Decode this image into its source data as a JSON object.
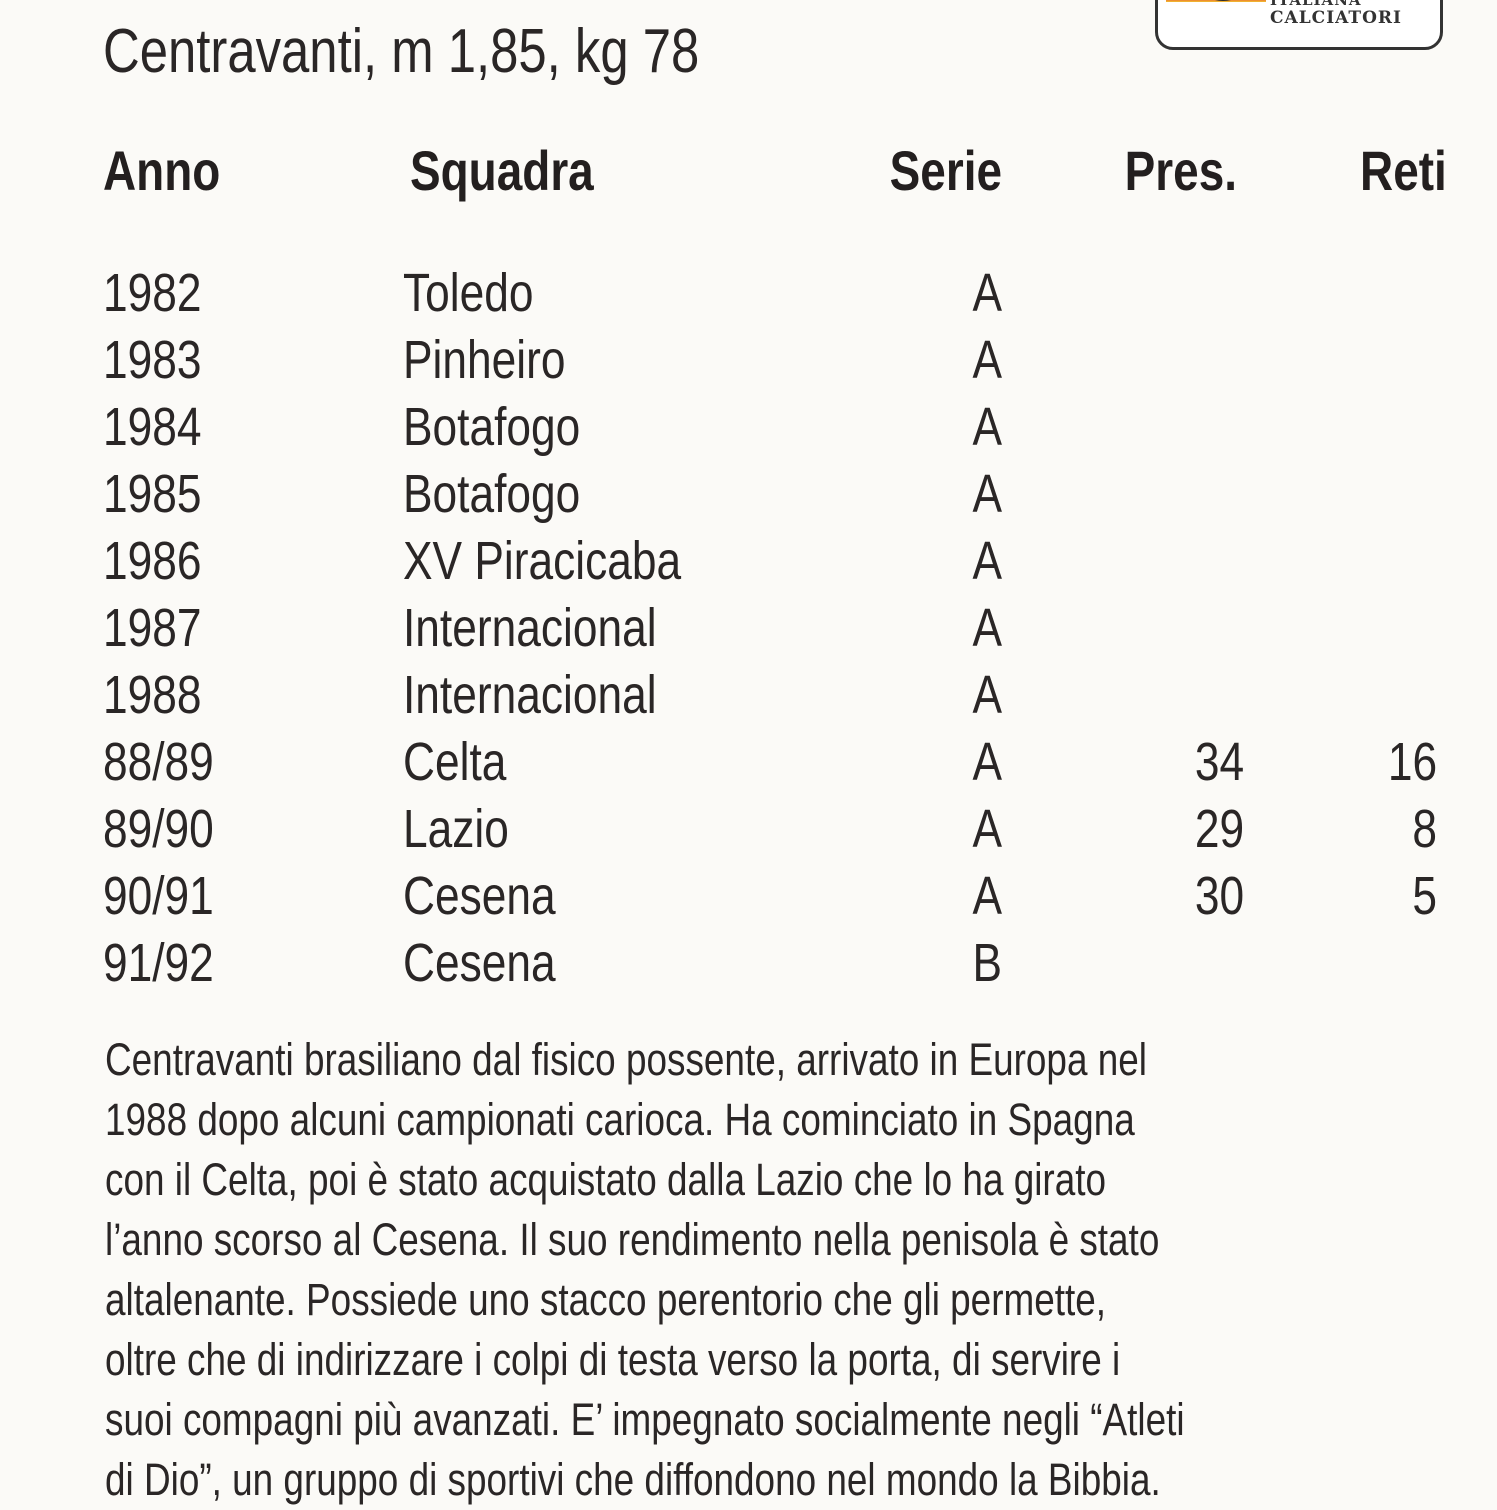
{
  "logo": {
    "line1": "ITALIANA",
    "line2": "CALCIATORI"
  },
  "subtitle": "Centravanti, m 1,85, kg 78",
  "table": {
    "headers": {
      "anno": "Anno",
      "squadra": "Squadra",
      "serie": "Serie",
      "pres": "Pres.",
      "reti": "Reti"
    },
    "rows": [
      {
        "anno": "1982",
        "squadra": "Toledo",
        "serie": "A",
        "pres": "",
        "reti": ""
      },
      {
        "anno": "1983",
        "squadra": "Pinheiro",
        "serie": "A",
        "pres": "",
        "reti": ""
      },
      {
        "anno": "1984",
        "squadra": "Botafogo",
        "serie": "A",
        "pres": "",
        "reti": ""
      },
      {
        "anno": "1985",
        "squadra": "Botafogo",
        "serie": "A",
        "pres": "",
        "reti": ""
      },
      {
        "anno": "1986",
        "squadra": "XV Piracicaba",
        "serie": "A",
        "pres": "",
        "reti": ""
      },
      {
        "anno": "1987",
        "squadra": "Internacional",
        "serie": "A",
        "pres": "",
        "reti": ""
      },
      {
        "anno": "1988",
        "squadra": "Internacional",
        "serie": "A",
        "pres": "",
        "reti": ""
      },
      {
        "anno": "88/89",
        "squadra": "Celta",
        "serie": "A",
        "pres": "34",
        "reti": "16"
      },
      {
        "anno": "89/90",
        "squadra": "Lazio",
        "serie": "A",
        "pres": "29",
        "reti": "8"
      },
      {
        "anno": "90/91",
        "squadra": "Cesena",
        "serie": "A",
        "pres": "30",
        "reti": "5"
      },
      {
        "anno": "91/92",
        "squadra": "Cesena",
        "serie": "B",
        "pres": "",
        "reti": ""
      }
    ]
  },
  "description": [
    "Centravanti brasiliano dal fisico possente, arrivato in Europa nel",
    "1988 dopo alcuni campionati carioca. Ha cominciato in Spagna",
    "con il Celta, poi è stato acquistato dalla Lazio che lo ha girato",
    "l’anno scorso al Cesena. Il suo rendimento nella penisola è stato",
    "altalenante. Possiede uno stacco perentorio che gli permette,",
    "oltre che di indirizzare i colpi di testa verso la porta, di servire i",
    "suoi compagni più avanzati. E’ impegnato socialmente negli “Atleti",
    "di Dio”, un gruppo di sportivi che diffondono nel mondo la Bibbia."
  ]
}
